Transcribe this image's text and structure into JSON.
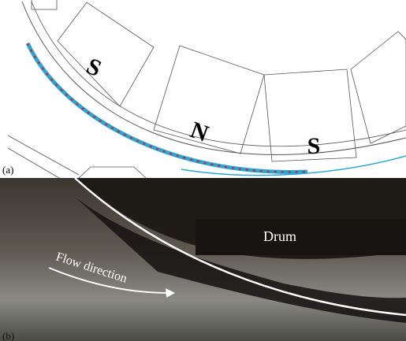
{
  "panel_a": {
    "label": "(a)",
    "poles": [
      "S",
      "N",
      "S"
    ]
  },
  "panel_b": {
    "label": "(b)",
    "drum": "Drum",
    "flow": "Flow direction"
  }
}
